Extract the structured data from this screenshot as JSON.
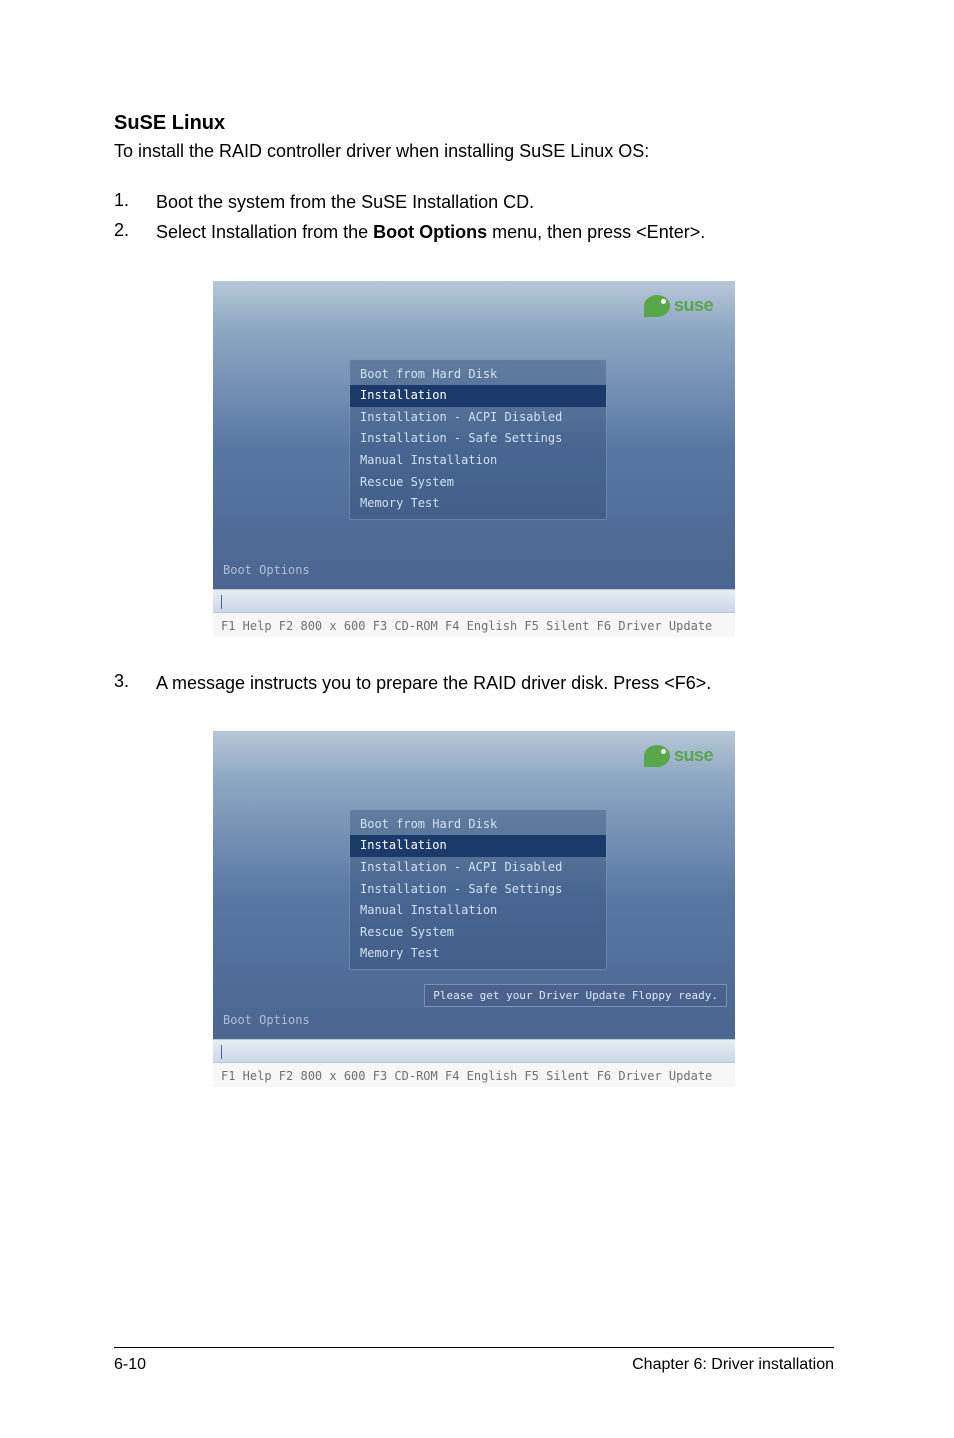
{
  "heading": "SuSE Linux",
  "intro": "To install the RAID controller driver when installing SuSE Linux OS:",
  "steps": [
    {
      "num": "1.",
      "text_pre": "Boot the system from the SuSE Installation CD.",
      "bold": "",
      "text_post": ""
    },
    {
      "num": "2.",
      "text_pre": "Select Installation from the ",
      "bold": "Boot Options",
      "text_post": " menu, then press <Enter>."
    }
  ],
  "step3": {
    "num": "3.",
    "text": "A message instructs you to prepare the RAID driver disk. Press <F6>."
  },
  "suse_logo_text": "suse",
  "menu": {
    "items": [
      "Boot from Hard Disk",
      "Installation",
      "Installation - ACPI Disabled",
      "Installation - Safe Settings",
      "Manual Installation",
      "Rescue System",
      "Memory Test"
    ],
    "selected_index": 1
  },
  "boot_options_label": "Boot Options",
  "floppy_message": "Please get your Driver Update Floppy ready.",
  "fkeys": "F1 Help  F2 800 x 600  F3 CD-ROM  F4 English  F5 Silent  F6 Driver Update",
  "footer": {
    "left": "6-10",
    "right": "Chapter 6: Driver installation"
  },
  "colors": {
    "suse_green": "#5aa64a",
    "menu_text": "#cfe0f2",
    "menu_selected_bg": "#1a3a6a",
    "boot_label": "#aebed6",
    "fkey_text": "#707070"
  }
}
